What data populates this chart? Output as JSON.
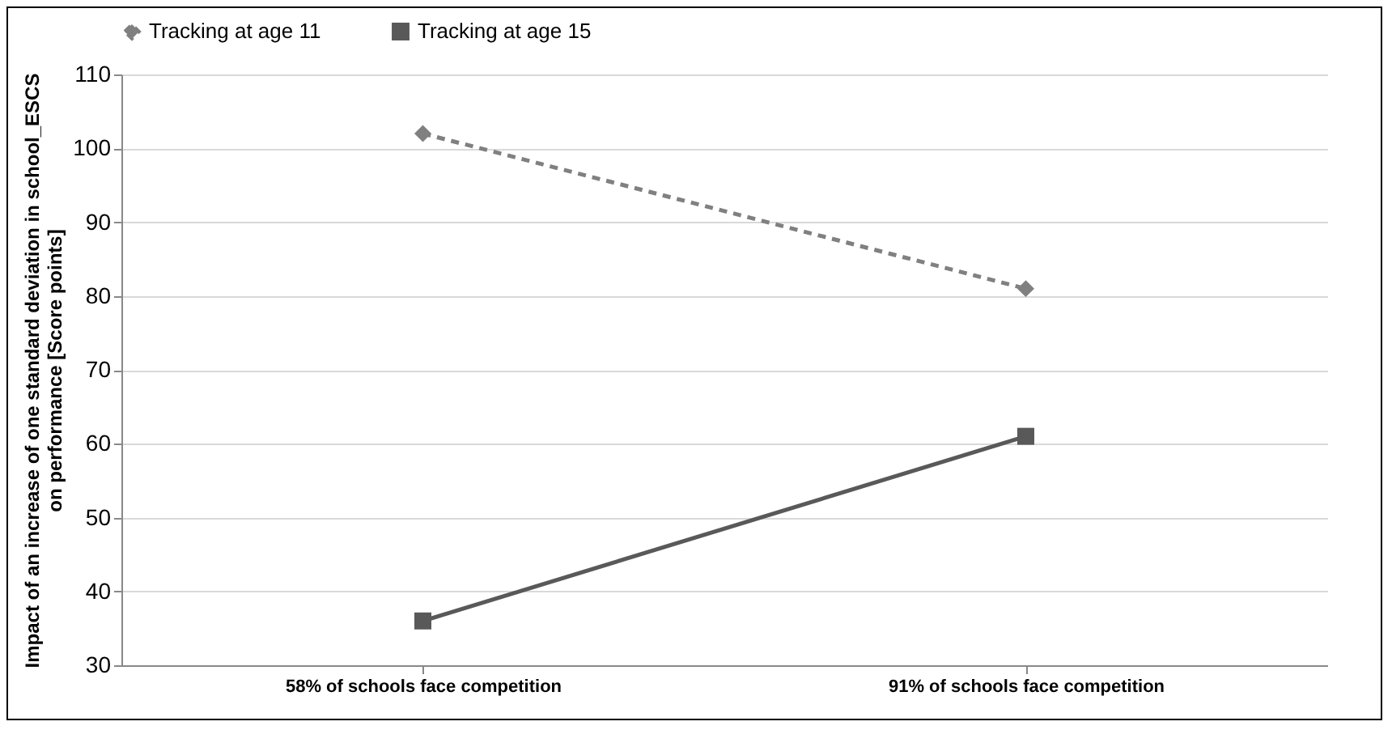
{
  "chart_data": {
    "type": "line",
    "ylabel": "Impact of an increase of one standard deviation  in school_ESCS\non performance [Score points]",
    "categories": [
      "58% of schools face competition",
      "91% of schools face competition"
    ],
    "series": [
      {
        "name": "Tracking at age 11",
        "color": "#808080",
        "values": [
          102,
          81
        ],
        "marker": "diamond",
        "line_style": "dashed"
      },
      {
        "name": "Tracking at age 15",
        "color": "#595959",
        "values": [
          36,
          61
        ],
        "marker": "square",
        "line_style": "solid"
      }
    ],
    "ylim": [
      30,
      110
    ],
    "yticks": [
      30,
      40,
      50,
      60,
      70,
      80,
      90,
      100,
      110
    ],
    "grid": "y",
    "legend": "top"
  }
}
